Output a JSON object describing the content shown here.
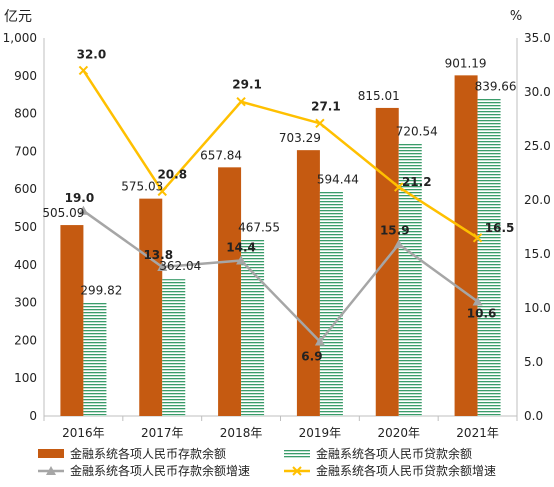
{
  "chart_data": {
    "type": "bar",
    "left_axis": {
      "unit": "亿元",
      "ticks": [
        "0",
        "100",
        "200",
        "300",
        "400",
        "500",
        "600",
        "700",
        "800",
        "900",
        "1,000"
      ],
      "ylim": [
        0,
        1000
      ]
    },
    "right_axis": {
      "unit": "%",
      "ticks": [
        "0.0",
        "5.0",
        "10.0",
        "15.0",
        "20.0",
        "25.0",
        "30.0",
        "35.0"
      ],
      "ylim": [
        0,
        35
      ]
    },
    "categories": [
      "2016年",
      "2017年",
      "2018年",
      "2019年",
      "2020年",
      "2021年"
    ],
    "series": [
      {
        "name": "金融系统各项人民币存款余额",
        "kind": "bar",
        "axis": "left",
        "color": "#c55a11",
        "values": [
          505.09,
          575.03,
          657.84,
          703.29,
          815.01,
          901.19
        ],
        "labels": [
          "505.09",
          "575.03",
          "657.84",
          "703.29",
          "815.01",
          "901.19"
        ]
      },
      {
        "name": "金融系统各项人民币贷款余额",
        "kind": "bar",
        "axis": "left",
        "color": "#3a9c6a",
        "pattern": "horizontal-stripes",
        "values": [
          299.82,
          362.04,
          467.55,
          594.44,
          720.54,
          839.66
        ],
        "labels": [
          "299.82",
          "362.04",
          "467.55",
          "594.44",
          "720.54",
          "839.66"
        ]
      },
      {
        "name": "金融系统各项人民币存款余额增速",
        "kind": "line",
        "axis": "right",
        "color": "#a6a6a6",
        "marker": "triangle",
        "values": [
          19.0,
          13.8,
          14.4,
          6.9,
          15.9,
          10.6
        ],
        "labels": [
          "19.0",
          "13.8",
          "14.4",
          "6.9",
          "15.9",
          "10.6"
        ]
      },
      {
        "name": "金融系统各项人民币贷款余额增速",
        "kind": "line",
        "axis": "right",
        "color": "#ffc000",
        "marker": "x",
        "values": [
          32.0,
          20.8,
          29.1,
          27.1,
          21.2,
          16.5
        ],
        "labels": [
          "32.0",
          "20.8",
          "29.1",
          "27.1",
          "21.2",
          "16.5"
        ]
      }
    ],
    "grid": false,
    "legend_position": "bottom"
  }
}
